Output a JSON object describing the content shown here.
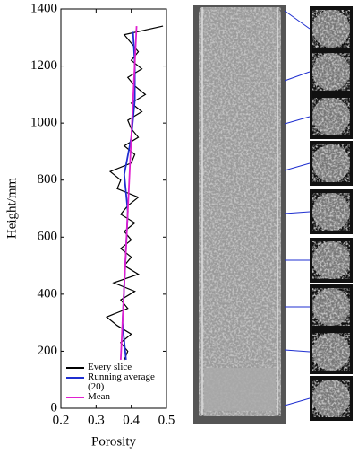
{
  "chart_data": {
    "type": "line",
    "xlabel": "Porosity",
    "ylabel": "Height/mm",
    "xlim": [
      0.2,
      0.5
    ],
    "xticks": [
      0.2,
      0.3,
      0.4,
      0.5
    ],
    "ylim": [
      0,
      1400
    ],
    "yticks": [
      0,
      200,
      400,
      600,
      800,
      1000,
      1200,
      1400
    ],
    "legend": "lower left",
    "series": [
      {
        "name": "Every slice",
        "color": "#000000",
        "heights": [
          170,
          200,
          230,
          260,
          290,
          320,
          350,
          380,
          410,
          440,
          470,
          500,
          530,
          560,
          590,
          620,
          650,
          680,
          710,
          740,
          770,
          800,
          830,
          860,
          890,
          920,
          950,
          980,
          1010,
          1040,
          1070,
          1100,
          1130,
          1160,
          1190,
          1220,
          1250,
          1280,
          1310,
          1340
        ],
        "values": [
          0.38,
          0.39,
          0.37,
          0.4,
          0.36,
          0.33,
          0.39,
          0.37,
          0.41,
          0.35,
          0.42,
          0.38,
          0.4,
          0.37,
          0.4,
          0.38,
          0.41,
          0.37,
          0.39,
          0.42,
          0.36,
          0.37,
          0.34,
          0.4,
          0.41,
          0.38,
          0.42,
          0.4,
          0.39,
          0.43,
          0.4,
          0.44,
          0.41,
          0.39,
          0.43,
          0.4,
          0.42,
          0.4,
          0.38,
          0.49
        ]
      },
      {
        "name": "Running average (20)",
        "color": "#1f2fd0",
        "heights": [
          170,
          300,
          430,
          560,
          690,
          820,
          950,
          1080,
          1210,
          1320
        ],
        "values": [
          0.385,
          0.375,
          0.38,
          0.385,
          0.39,
          0.38,
          0.4,
          0.41,
          0.41,
          0.405
        ]
      },
      {
        "name": "Mean",
        "color": "#e020d0",
        "heights": [
          170,
          1340
        ],
        "values": [
          0.37,
          0.415
        ]
      }
    ]
  }
}
